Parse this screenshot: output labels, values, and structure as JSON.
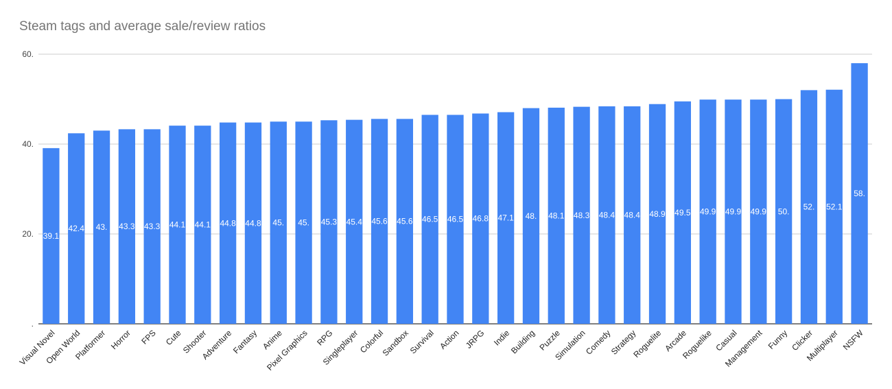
{
  "chart_data": {
    "type": "bar",
    "title": "Steam tags and average sale/review ratios",
    "xlabel": "",
    "ylabel": "",
    "ylim": [
      0,
      60
    ],
    "y_ticks": [
      {
        "value": 0,
        "label": "."
      },
      {
        "value": 20,
        "label": "20."
      },
      {
        "value": 40,
        "label": "40."
      },
      {
        "value": 60,
        "label": "60."
      }
    ],
    "grid": true,
    "bar_color": "#4285f4",
    "categories": [
      "Visual Novel",
      "Open World",
      "Platformer",
      "Horror",
      "FPS",
      "Cute",
      "Shooter",
      "Adventure",
      "Fantasy",
      "Anime",
      "Pixel Graphics",
      "RPG",
      "Singleplayer",
      "Colorful",
      "Sandbox",
      "Survival",
      "Action",
      "JRPG",
      "Indie",
      "Building",
      "Puzzle",
      "Simulation",
      "Comedy",
      "Strategy",
      "Roguelite",
      "Arcade",
      "Roguelike",
      "Casual",
      "Management",
      "Funny",
      "Clicker",
      "Multiplayer",
      "NSFW"
    ],
    "values": [
      39.1,
      42.4,
      43.0,
      43.3,
      43.3,
      44.1,
      44.1,
      44.8,
      44.8,
      45.0,
      45.0,
      45.3,
      45.4,
      45.6,
      45.6,
      46.5,
      46.5,
      46.8,
      47.1,
      48.0,
      48.1,
      48.3,
      48.4,
      48.4,
      48.9,
      49.5,
      49.9,
      49.9,
      49.9,
      50.0,
      52.0,
      52.1,
      58.0
    ],
    "data_labels": [
      "39.1",
      "42.4",
      "43.",
      "43.3",
      "43.3",
      "44.1",
      "44.1",
      "44.8",
      "44.8",
      "45.",
      "45.",
      "45.3",
      "45.4",
      "45.6",
      "45.6",
      "46.5",
      "46.5",
      "46.8",
      "47.1",
      "48.",
      "48.1",
      "48.3",
      "48.4",
      "48.4",
      "48.9",
      "49.5",
      "49.9",
      "49.9",
      "49.9",
      "50.",
      "52.",
      "52.1",
      "58."
    ]
  }
}
